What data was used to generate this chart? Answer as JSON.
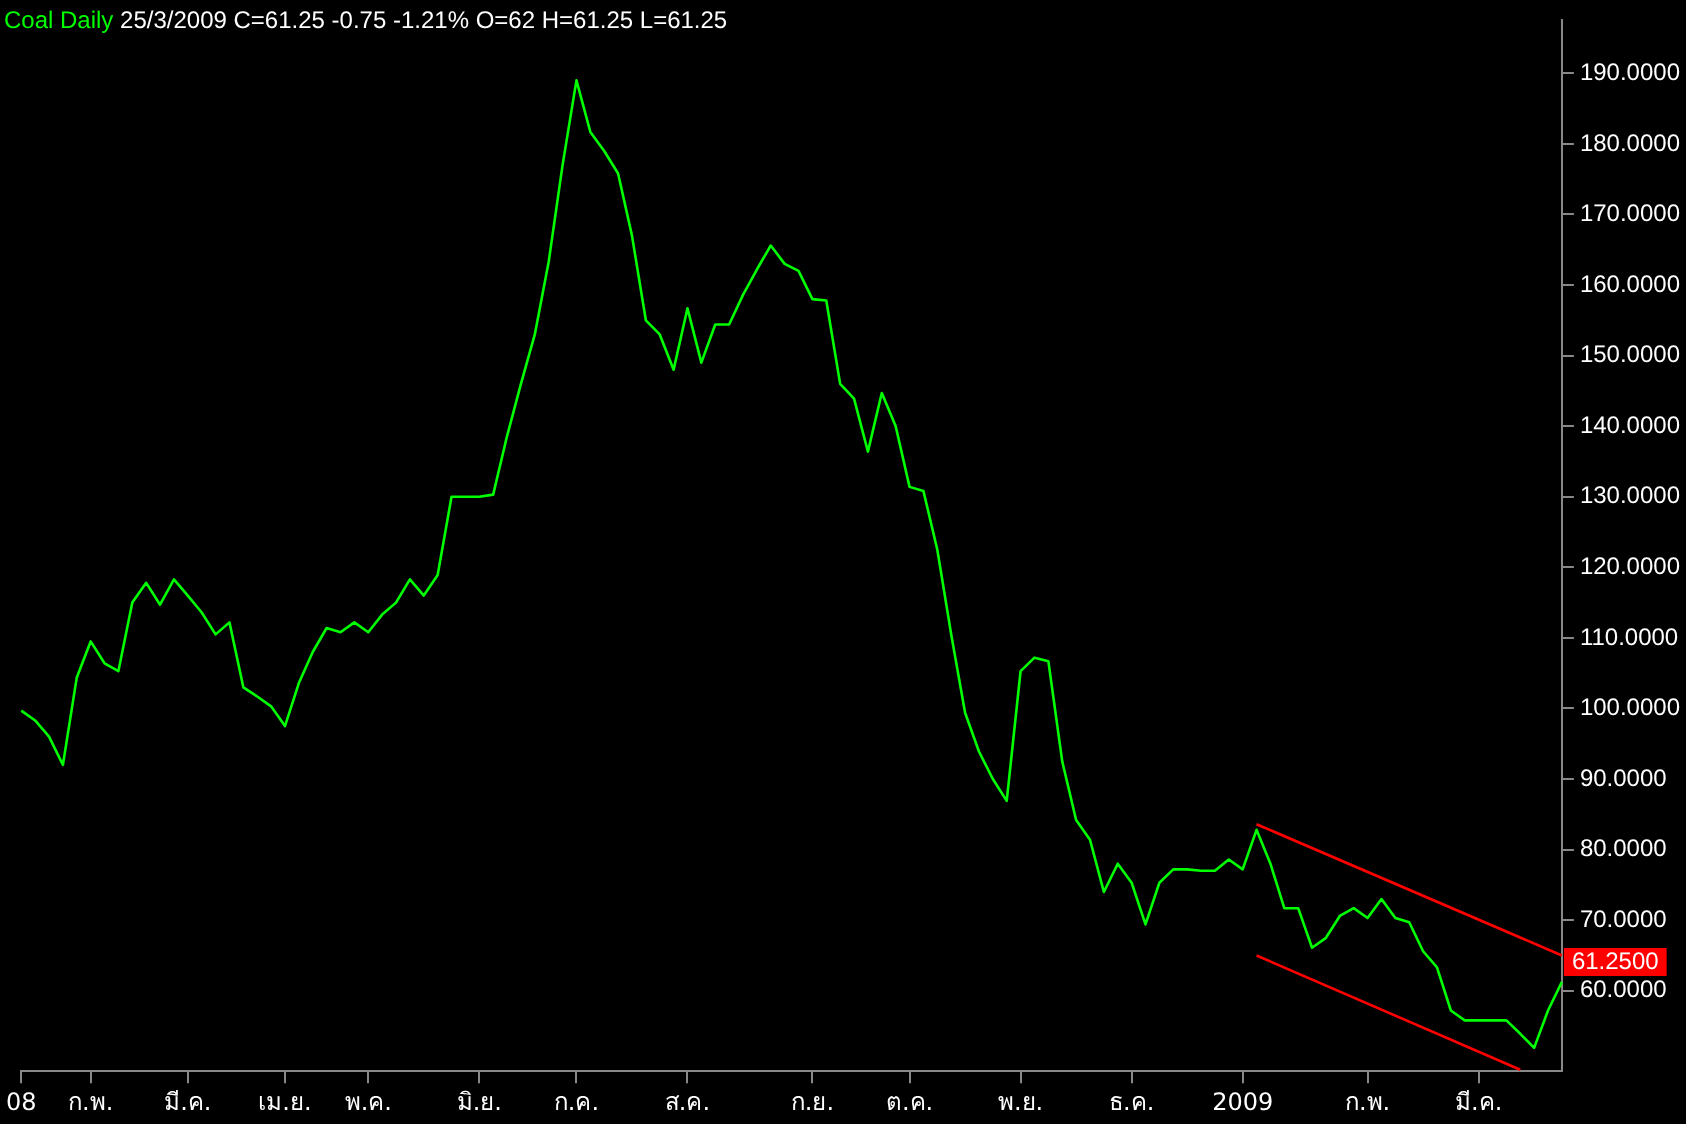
{
  "chart_data": {
    "type": "line",
    "title": "Coal Daily",
    "subtitle": "25/3/2009 C=61.25 -0.75 -1.21% O=62 H=61.25 L=61.25",
    "categories": [
      "08",
      null,
      null,
      null,
      null,
      "ก.พ.",
      null,
      null,
      null,
      null,
      null,
      null,
      "มี.ค.",
      null,
      null,
      null,
      null,
      null,
      null,
      "เม.ย.",
      null,
      null,
      null,
      null,
      null,
      "พ.ค.",
      null,
      null,
      null,
      null,
      null,
      null,
      null,
      "มิ.ย.",
      null,
      null,
      null,
      null,
      null,
      null,
      "ก.ค.",
      null,
      null,
      null,
      null,
      null,
      null,
      null,
      "ส.ค.",
      null,
      null,
      null,
      null,
      null,
      null,
      null,
      null,
      "ก.ย.",
      null,
      null,
      null,
      null,
      null,
      null,
      "ต.ค.",
      null,
      null,
      null,
      null,
      null,
      null,
      null,
      "พ.ย.",
      null,
      null,
      null,
      null,
      null,
      null,
      null,
      "ธ.ค.",
      null,
      null,
      null,
      null,
      null,
      null,
      null,
      "2009",
      null,
      null,
      null,
      null,
      null,
      null,
      null,
      null,
      "ก.พ.",
      null,
      null,
      null,
      null,
      null,
      null,
      null,
      "มี.ค.",
      null,
      null,
      null,
      null,
      null,
      null
    ],
    "series": [
      {
        "color": "#00ff00",
        "values": [
          99.7,
          98.3,
          96,
          92,
          104.4,
          109.5,
          106.4,
          105.3,
          115,
          117.8,
          114.7,
          118.3,
          116,
          113.6,
          110.5,
          112.2,
          103,
          101.7,
          100.3,
          97.5,
          103.6,
          108,
          111.4,
          110.8,
          112.2,
          110.8,
          113.3,
          115,
          118.3,
          116,
          118.9,
          130,
          130,
          130,
          130.3,
          138.6,
          146,
          153,
          163.3,
          177,
          189,
          181.7,
          179,
          175.8,
          167,
          155,
          153,
          148,
          156.7,
          149,
          154.4,
          154.4,
          158.6,
          162.2,
          165.6,
          163,
          162,
          158,
          157.8,
          146,
          143.9,
          136.4,
          144.7,
          140,
          131.4,
          130.8,
          122.5,
          110.5,
          99.4,
          93.9,
          90,
          86.9,
          105.3,
          107.2,
          106.7,
          92.5,
          84.2,
          81.4,
          74,
          78,
          75.3,
          69.4,
          75.3,
          77.2,
          77.2,
          77,
          77,
          78.6,
          77.2,
          82.8,
          78,
          71.7,
          71.7,
          66.1,
          67.5,
          70.6,
          71.7,
          70.3,
          73,
          70.3,
          69.7,
          65.6,
          63.3,
          57.2,
          55.8,
          55.8,
          55.8,
          55.8,
          53.9,
          51.9,
          57.2,
          61.25
        ]
      },
      {
        "color": "#ff0000",
        "values": [
          null,
          null,
          null,
          null,
          null,
          null,
          null,
          null,
          null,
          null,
          null,
          null,
          null,
          null,
          null,
          null,
          null,
          null,
          null,
          null,
          null,
          null,
          null,
          null,
          null,
          null,
          null,
          null,
          null,
          null,
          null,
          null,
          null,
          null,
          null,
          null,
          null,
          null,
          null,
          null,
          null,
          null,
          null,
          null,
          null,
          null,
          null,
          null,
          null,
          null,
          null,
          null,
          null,
          null,
          null,
          null,
          null,
          null,
          null,
          null,
          null,
          null,
          null,
          null,
          null,
          null,
          null,
          null,
          null,
          null,
          null,
          null,
          null,
          null,
          null,
          null,
          null,
          null,
          null,
          null,
          null,
          null,
          null,
          null,
          null,
          null,
          null,
          null,
          null,
          83.6,
          null,
          null,
          null,
          null,
          null,
          null,
          null,
          null,
          null,
          null,
          null,
          null,
          null,
          null,
          null,
          null,
          null,
          null,
          null,
          null,
          null,
          65
        ]
      },
      {
        "color": "#ff0000",
        "values": [
          null,
          null,
          null,
          null,
          null,
          null,
          null,
          null,
          null,
          null,
          null,
          null,
          null,
          null,
          null,
          null,
          null,
          null,
          null,
          null,
          null,
          null,
          null,
          null,
          null,
          null,
          null,
          null,
          null,
          null,
          null,
          null,
          null,
          null,
          null,
          null,
          null,
          null,
          null,
          null,
          null,
          null,
          null,
          null,
          null,
          null,
          null,
          null,
          null,
          null,
          null,
          null,
          null,
          null,
          null,
          null,
          null,
          null,
          null,
          null,
          null,
          null,
          null,
          null,
          null,
          null,
          null,
          null,
          null,
          null,
          null,
          null,
          null,
          null,
          null,
          null,
          null,
          null,
          null,
          null,
          null,
          null,
          null,
          null,
          null,
          null,
          null,
          null,
          null,
          65,
          null,
          null,
          null,
          null,
          null,
          null,
          null,
          null,
          null,
          null,
          null,
          null,
          null,
          null,
          null,
          null,
          null,
          null,
          48.8,
          null,
          null,
          null
        ]
      }
    ],
    "ylim": [
      48.6,
      197.5
    ],
    "yticks": [
      {
        "value": 60,
        "label": "60.0000"
      },
      {
        "value": 70,
        "label": "70.0000"
      },
      {
        "value": 80,
        "label": "80.0000"
      },
      {
        "value": 90,
        "label": "90.0000"
      },
      {
        "value": 100,
        "label": "100.0000"
      },
      {
        "value": 110,
        "label": "110.0000"
      },
      {
        "value": 120,
        "label": "120.0000"
      },
      {
        "value": 130,
        "label": "130.0000"
      },
      {
        "value": 140,
        "label": "140.0000"
      },
      {
        "value": 150,
        "label": "150.0000"
      },
      {
        "value": 160,
        "label": "160.0000"
      },
      {
        "value": 170,
        "label": "170.0000"
      },
      {
        "value": 180,
        "label": "180.0000"
      },
      {
        "value": 190,
        "label": "190.0000"
      }
    ],
    "annotations": [
      "61.2500"
    ],
    "grid": false,
    "legend": false
  }
}
